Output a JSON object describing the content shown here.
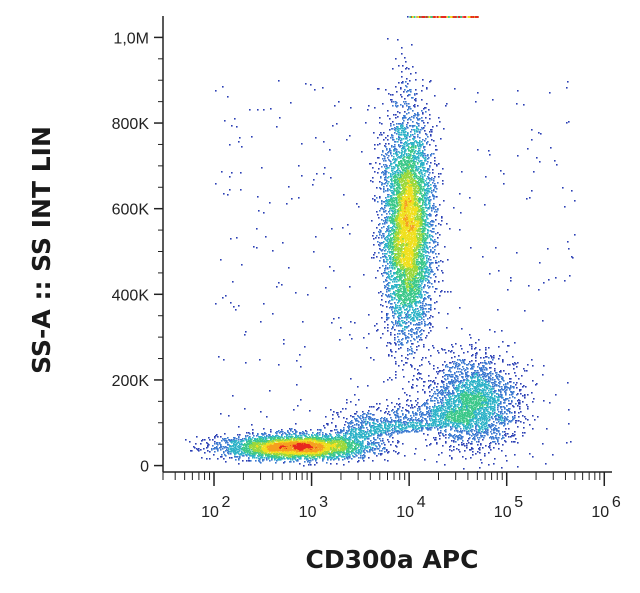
{
  "chart_data": {
    "type": "scatter",
    "subtype": "flow-cytometry-density-dot-plot",
    "xlabel": "CD300a APC",
    "ylabel": "SS-A :: SS INT LIN",
    "x_scale": "log",
    "y_scale": "linear",
    "xlim": [
      30,
      1200000
    ],
    "ylim": [
      -15000,
      1050000
    ],
    "x_ticks": [
      {
        "value": 100,
        "base": "10",
        "exp": "2"
      },
      {
        "value": 1000,
        "base": "10",
        "exp": "3"
      },
      {
        "value": 10000,
        "base": "10",
        "exp": "4"
      },
      {
        "value": 100000,
        "base": "10",
        "exp": "5"
      },
      {
        "value": 1000000,
        "base": "10",
        "exp": "6"
      }
    ],
    "y_ticks": [
      {
        "value": 0,
        "label": "0"
      },
      {
        "value": 200000,
        "label": "200K"
      },
      {
        "value": 400000,
        "label": "400K"
      },
      {
        "value": 600000,
        "label": "600K"
      },
      {
        "value": 800000,
        "label": "800K"
      },
      {
        "value": 1000000,
        "label": "1,0M"
      }
    ],
    "color_scale": [
      "#2b3fb5",
      "#3a78d0",
      "#2fb3c9",
      "#3cc98a",
      "#9ad83c",
      "#f0e020",
      "#f5a020",
      "#e8281e"
    ],
    "populations": [
      {
        "name": "",
        "x_log_center": 3.98,
        "x_log_sd": 0.11,
        "y_center": 560000,
        "y_sd": 110000,
        "count": 9000
      },
      {
        "name": "",
        "x_log_center": 2.85,
        "x_log_sd": 0.32,
        "y_center": 45000,
        "y_sd": 12000,
        "count": 4500
      },
      {
        "name": "",
        "x_log_center": 4.65,
        "x_log_sd": 0.2,
        "y_center": 150000,
        "y_sd": 45000,
        "count": 2500
      }
    ],
    "grid": false,
    "legend": "none"
  }
}
